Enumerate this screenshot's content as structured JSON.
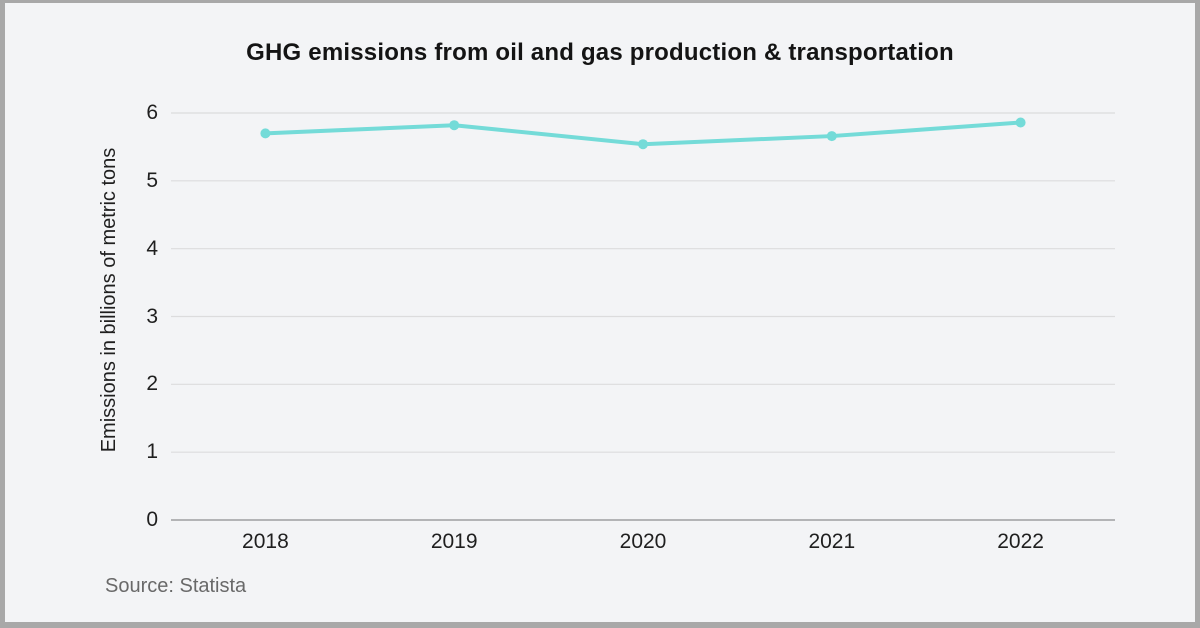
{
  "source": "Source: Statista",
  "colors": {
    "background": "#f3f4f6",
    "border": "#a8a8a8",
    "grid": "#dcdcdd",
    "axis": "#9e9ea1",
    "line": "#74dbd8",
    "point": "#74dbd8",
    "title_text": "#141414",
    "tick_text": "#1f1f1f",
    "source_text": "#696969"
  },
  "chart_data": {
    "type": "line",
    "title": "GHG emissions from oil and gas production & transportation",
    "categories": [
      "2018",
      "2019",
      "2020",
      "2021",
      "2022"
    ],
    "values": [
      5.7,
      5.82,
      5.54,
      5.66,
      5.86
    ],
    "xlabel": "",
    "ylabel": "Emissions in billions of metric tons",
    "ylim": [
      0,
      6
    ],
    "yticks": [
      0,
      1,
      2,
      3,
      4,
      5,
      6
    ],
    "grid": true,
    "legend": false
  }
}
